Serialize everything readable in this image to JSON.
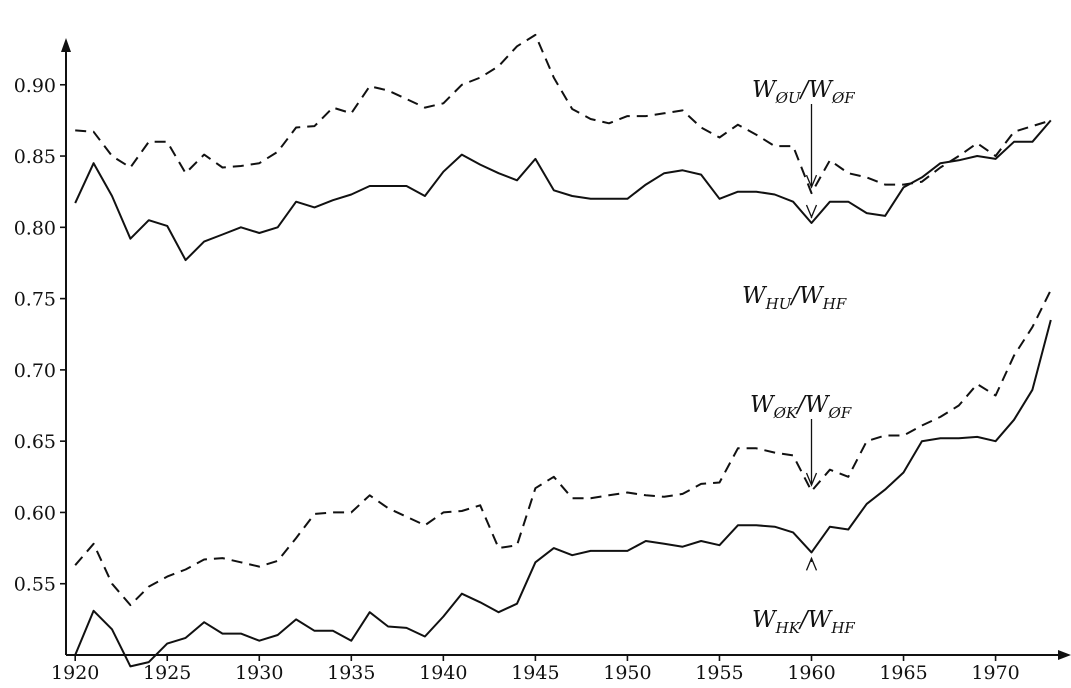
{
  "chart_data": {
    "type": "line",
    "title": "",
    "xlabel": "",
    "ylabel": "",
    "xlim": [
      1919.5,
      1973.5
    ],
    "ylim": [
      0.5,
      0.93
    ],
    "grid": false,
    "x_ticks": [
      1920,
      1925,
      1930,
      1935,
      1940,
      1945,
      1950,
      1955,
      1960,
      1965,
      1970
    ],
    "y_ticks": [
      0.55,
      0.6,
      0.65,
      0.7,
      0.75,
      0.8,
      0.85,
      0.9
    ],
    "x": [
      1920,
      1921,
      1922,
      1923,
      1924,
      1925,
      1926,
      1927,
      1928,
      1929,
      1930,
      1931,
      1932,
      1933,
      1934,
      1935,
      1936,
      1937,
      1938,
      1939,
      1940,
      1941,
      1942,
      1943,
      1944,
      1945,
      1946,
      1947,
      1948,
      1949,
      1950,
      1951,
      1952,
      1953,
      1954,
      1955,
      1956,
      1957,
      1958,
      1959,
      1960,
      1961,
      1962,
      1963,
      1964,
      1965,
      1966,
      1967,
      1968,
      1969,
      1970,
      1971,
      1972,
      1973
    ],
    "series": [
      {
        "label": "WØU/WØF",
        "style": "dashed",
        "values": [
          0.868,
          0.867,
          0.85,
          0.842,
          0.86,
          0.86,
          0.838,
          0.851,
          0.842,
          0.843,
          0.845,
          0.853,
          0.87,
          0.871,
          0.884,
          0.88,
          0.899,
          0.896,
          0.89,
          0.884,
          0.887,
          0.9,
          0.905,
          0.913,
          0.927,
          0.935,
          0.905,
          0.883,
          0.876,
          0.873,
          0.878,
          0.878,
          0.88,
          0.882,
          0.87,
          0.863,
          0.872,
          0.865,
          0.857,
          0.857,
          0.824,
          0.847,
          0.838,
          0.835,
          0.83,
          0.83,
          0.832,
          0.842,
          0.85,
          0.859,
          0.85,
          0.867,
          0.871,
          0.875
        ]
      },
      {
        "label": "WHU/WHF",
        "style": "solid",
        "values": [
          0.817,
          0.845,
          0.822,
          0.792,
          0.805,
          0.801,
          0.777,
          0.79,
          0.795,
          0.8,
          0.796,
          0.8,
          0.818,
          0.814,
          0.819,
          0.823,
          0.829,
          0.829,
          0.829,
          0.822,
          0.839,
          0.851,
          0.844,
          0.838,
          0.833,
          0.848,
          0.826,
          0.822,
          0.82,
          0.82,
          0.82,
          0.83,
          0.838,
          0.84,
          0.837,
          0.82,
          0.825,
          0.825,
          0.823,
          0.818,
          0.803,
          0.818,
          0.818,
          0.81,
          0.808,
          0.828,
          0.835,
          0.845,
          0.847,
          0.85,
          0.848,
          0.86,
          0.86,
          0.875
        ]
      },
      {
        "label": "WØK/WØF",
        "style": "dashed",
        "values": [
          0.563,
          0.578,
          0.55,
          0.535,
          0.548,
          0.555,
          0.56,
          0.567,
          0.568,
          0.565,
          0.562,
          0.566,
          0.582,
          0.599,
          0.6,
          0.6,
          0.612,
          0.603,
          0.597,
          0.591,
          0.6,
          0.601,
          0.605,
          0.575,
          0.577,
          0.617,
          0.625,
          0.61,
          0.61,
          0.612,
          0.614,
          0.612,
          0.611,
          0.613,
          0.62,
          0.621,
          0.645,
          0.645,
          0.642,
          0.64,
          0.615,
          0.63,
          0.625,
          0.65,
          0.654,
          0.654,
          0.661,
          0.667,
          0.675,
          0.69,
          0.682,
          0.71,
          0.73,
          0.756
        ]
      },
      {
        "label": "WHK/WHF",
        "style": "solid",
        "values": [
          0.5,
          0.531,
          0.518,
          0.492,
          0.495,
          0.508,
          0.512,
          0.523,
          0.515,
          0.515,
          0.51,
          0.514,
          0.525,
          0.517,
          0.517,
          0.51,
          0.53,
          0.52,
          0.519,
          0.513,
          0.527,
          0.543,
          0.537,
          0.53,
          0.536,
          0.565,
          0.575,
          0.57,
          0.573,
          0.573,
          0.573,
          0.58,
          0.578,
          0.576,
          0.58,
          0.577,
          0.591,
          0.591,
          0.59,
          0.586,
          0.572,
          0.59,
          0.588,
          0.606,
          0.616,
          0.628,
          0.65,
          0.652,
          0.652,
          0.653,
          0.65,
          0.665,
          0.686,
          0.735
        ]
      }
    ],
    "annotations": [
      {
        "main1": "W",
        "sub1": "ØU",
        "main2": "/W",
        "sub2": "ØF",
        "arrow_to": 0.824
      },
      {
        "main1": "W",
        "sub1": "HU",
        "main2": "/W",
        "sub2": "HF",
        "arrow_to": 0.803
      },
      {
        "main1": "W",
        "sub1": "ØK",
        "main2": "/W",
        "sub2": "ØF",
        "arrow_to": 0.615
      },
      {
        "main1": "W",
        "sub1": "HK",
        "main2": "/W",
        "sub2": "HF",
        "arrow_to": 0.572
      }
    ]
  }
}
